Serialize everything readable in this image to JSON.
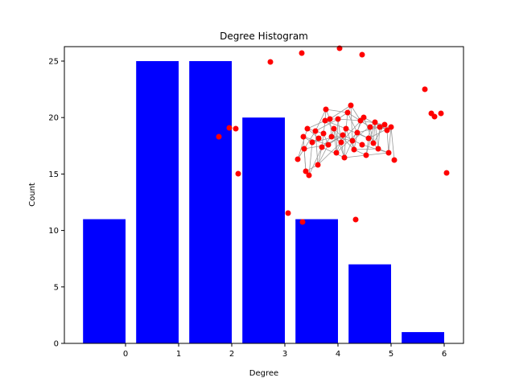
{
  "chart_data": {
    "type": "bar",
    "title": "Degree Histogram",
    "x_label": "Degree",
    "y_label": "Count",
    "categories": [
      "0",
      "1",
      "2",
      "3",
      "4",
      "5",
      "6"
    ],
    "values": [
      11,
      25,
      25,
      20,
      11,
      7,
      1
    ],
    "color": "#0000ff",
    "ylim": [
      0,
      26.28
    ],
    "yticks": [
      0,
      5,
      10,
      15,
      20,
      25
    ]
  }
}
